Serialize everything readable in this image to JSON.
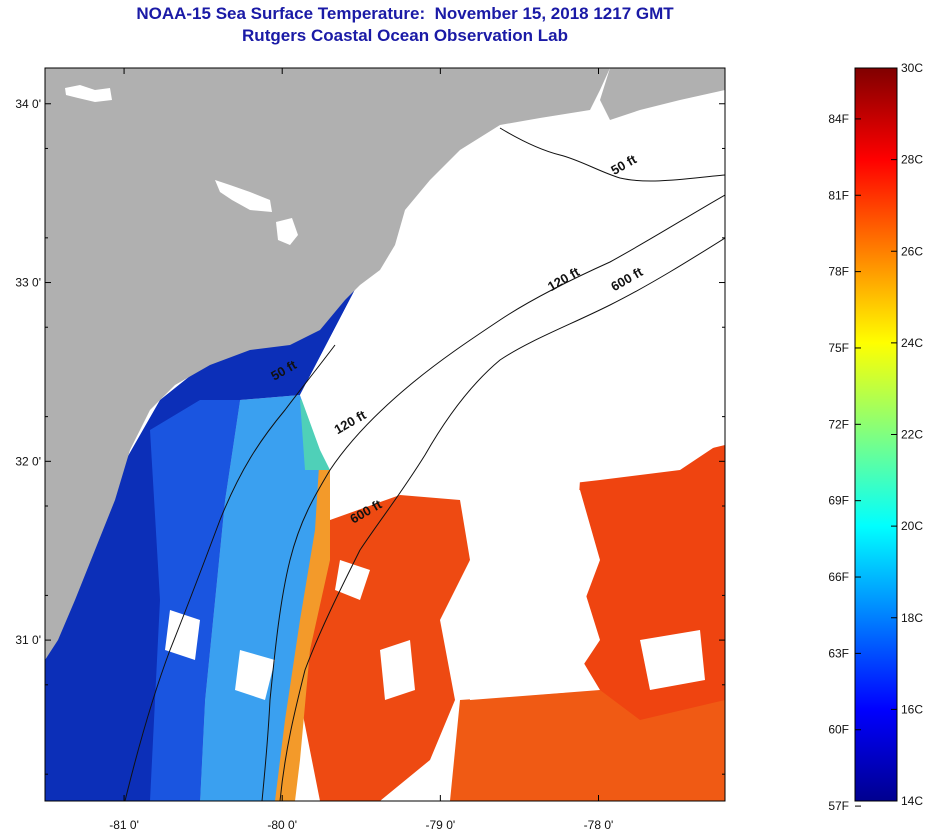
{
  "header": {
    "title": "NOAA-15 Sea Surface Temperature:  November 15, 2018 1217 GMT",
    "subtitle": "Rutgers Coastal Ocean Observation Lab"
  },
  "map": {
    "lon_range": [
      -81.5,
      -77.2
    ],
    "lat_range": [
      30.1,
      34.2
    ],
    "lat_ticks": [
      {
        "value": 34,
        "label": "34 0'"
      },
      {
        "value": 33,
        "label": "33 0'"
      },
      {
        "value": 32,
        "label": "32 0'"
      },
      {
        "value": 31,
        "label": "31 0'"
      }
    ],
    "lon_ticks": [
      {
        "value": -81,
        "label": "-81 0'"
      },
      {
        "value": -80,
        "label": "-80 0'"
      },
      {
        "value": -79,
        "label": "-79 0'"
      },
      {
        "value": -78,
        "label": "-78 0'"
      }
    ],
    "contour_labels": [
      {
        "text": "50 ft",
        "lon": -77.9,
        "lat": 33.6
      },
      {
        "text": "120 ft",
        "lon": -78.3,
        "lat": 32.95
      },
      {
        "text": "600 ft",
        "lon": -77.9,
        "lat": 32.95
      },
      {
        "text": "50 ft",
        "lon": -80.05,
        "lat": 32.45
      },
      {
        "text": "120 ft",
        "lon": -79.65,
        "lat": 32.15
      },
      {
        "text": "600 ft",
        "lon": -79.55,
        "lat": 31.65
      }
    ],
    "colors": {
      "land": "#b0b0b0",
      "missing": "#ffffff",
      "cold": "#0a2a9e",
      "warm": "#ee4010"
    }
  },
  "colorbar": {
    "celsius_labels": [
      "30C",
      "28C",
      "26C",
      "24C",
      "22C",
      "20C",
      "18C",
      "16C",
      "14C"
    ],
    "fahrenheit_labels": [
      "84F",
      "81F",
      "78F",
      "75F",
      "72F",
      "69F",
      "66F",
      "63F",
      "60F",
      "57F"
    ],
    "range_c": [
      14,
      30
    ],
    "colormap": "jet"
  }
}
